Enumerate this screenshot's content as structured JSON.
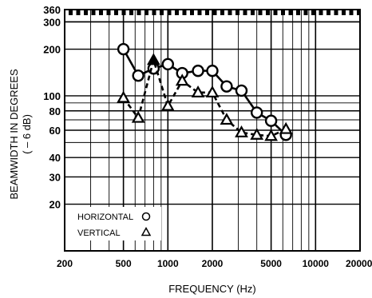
{
  "chart_data": {
    "type": "line",
    "xlabel": "FREQUENCY (Hz)",
    "ylabel": "BEAMWIDTH IN DEGREES",
    "ylabel_sub": "( – 6 dB)",
    "x_scale": "log",
    "y_scale": "log",
    "xlim": [
      200,
      20000
    ],
    "ylim": [
      10,
      360
    ],
    "x_tick_labels": [
      "200",
      "500",
      "1000",
      "2000",
      "5000",
      "10000",
      "20000"
    ],
    "y_tick_labels": [
      "360",
      "300",
      "200",
      "100",
      "80",
      "60",
      "40",
      "30",
      "20"
    ],
    "grid": true,
    "legend_position": "bottom-left",
    "series": [
      {
        "name": "HORIZONTAL",
        "marker": "circle",
        "line_style": "solid",
        "x": [
          500,
          630,
          800,
          1000,
          1250,
          1600,
          2000,
          2500,
          3150,
          4000,
          5000,
          6300
        ],
        "y": [
          200,
          135,
          150,
          160,
          140,
          145,
          145,
          115,
          108,
          78,
          69,
          56
        ]
      },
      {
        "name": "VERTICAL",
        "marker": "triangle",
        "line_style": "dashed",
        "x": [
          500,
          630,
          800,
          1000,
          1250,
          1600,
          2000,
          2500,
          3150,
          4000,
          5000,
          6300
        ],
        "y": [
          97,
          72,
          170,
          86,
          125,
          105,
          105,
          70,
          58,
          56,
          55,
          61
        ]
      }
    ]
  }
}
